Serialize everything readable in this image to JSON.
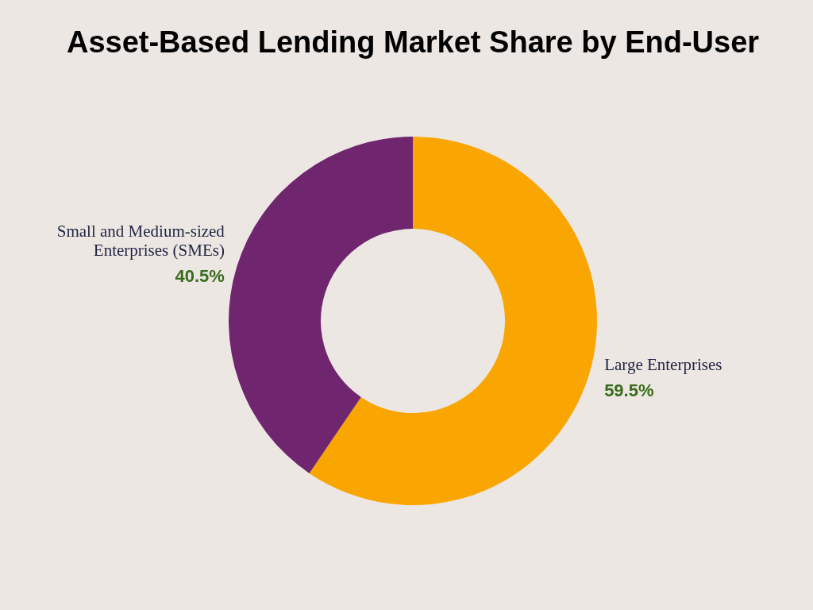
{
  "chart_data": {
    "type": "donut",
    "title": "Asset-Based Lending Market Share by End-User",
    "categories": [
      "Large Enterprises",
      "Small and Medium-sized Enterprises (SMEs)"
    ],
    "values": [
      59.5,
      40.5
    ],
    "colors": [
      "#f9a602",
      "#70266e"
    ],
    "value_labels": [
      "59.5%",
      "40.5%"
    ]
  }
}
